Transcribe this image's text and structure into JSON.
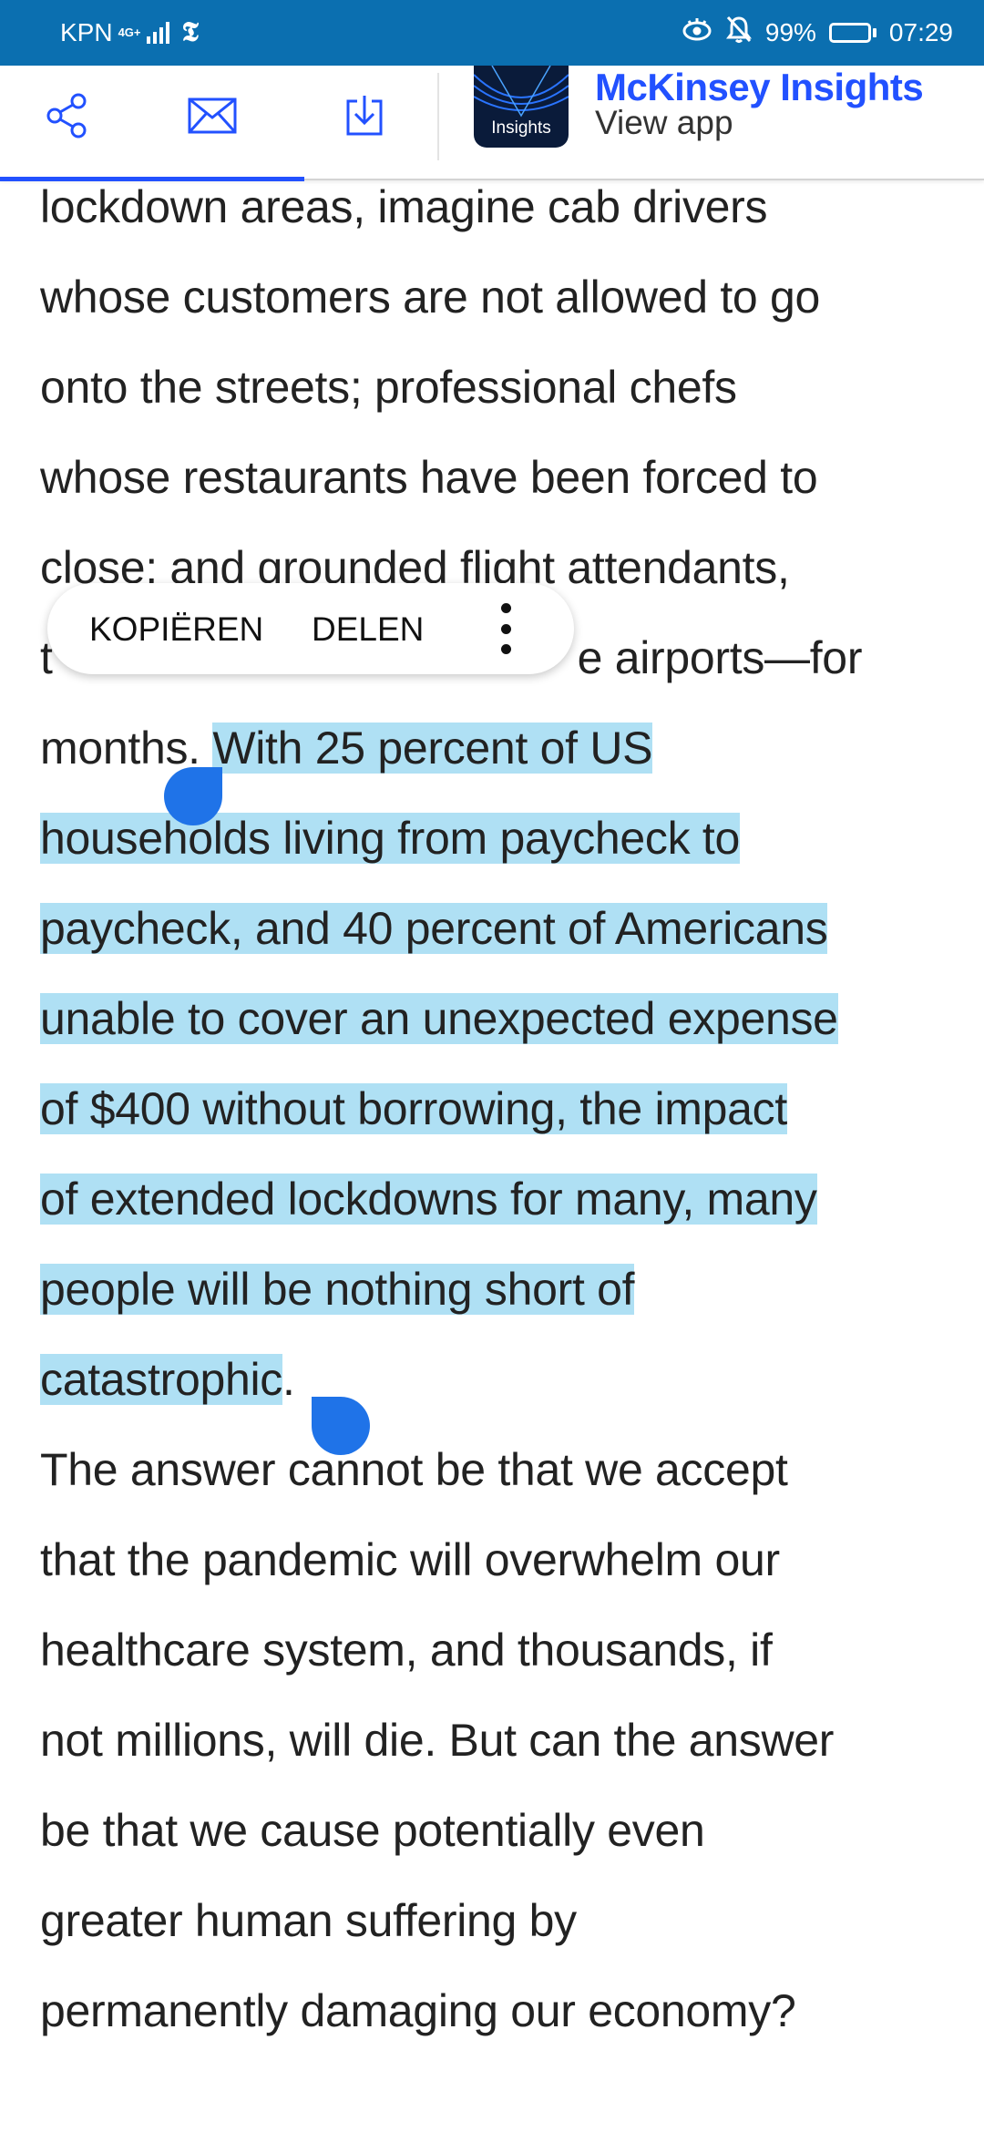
{
  "status_bar": {
    "carrier": "KPN",
    "network": "4G+",
    "battery": "99%",
    "time": "07:29"
  },
  "toolbar": {
    "icons": [
      "share-icon",
      "mail-icon",
      "download-icon"
    ],
    "app_tile_label": "Insights",
    "app_name": "McKinsey Insights",
    "app_action": "View app"
  },
  "article": {
    "para1_lines_plain": [
      "lockdown areas, imagine cab drivers",
      "whose customers are not allowed to go",
      "onto the streets; professional chefs",
      "whose restaurants have been forced to",
      "close; and grounded flight attendants,",
      "t",
      "e airports—for",
      "months. "
    ],
    "para1_selected_lines": [
      "With 25 percent of US",
      "households living from paycheck to",
      "paycheck, and 40 percent of Americans",
      "unable to cover an unexpected expense",
      "of $400 without borrowing, the impact",
      "of extended lockdowns for many, many",
      "people will be nothing short of",
      "catastrophic"
    ],
    "para1_end": ".",
    "para2_lines": [
      "The answer cannot be that we accept",
      "that the pandemic will overwhelm our",
      "healthcare system, and thousands, if",
      "not millions, will die. But can the answer",
      "be that we cause potentially even",
      "greater human suffering by",
      "permanently damaging our economy?"
    ]
  },
  "context_menu": {
    "copy": "KOPIËREN",
    "share": "DELEN",
    "more_icon": "more-vert-icon"
  },
  "colors": {
    "status_bar": "#0b6fb0",
    "accent": "#2251ff",
    "selection": "#afe0f4",
    "handle": "#1f73e8"
  }
}
